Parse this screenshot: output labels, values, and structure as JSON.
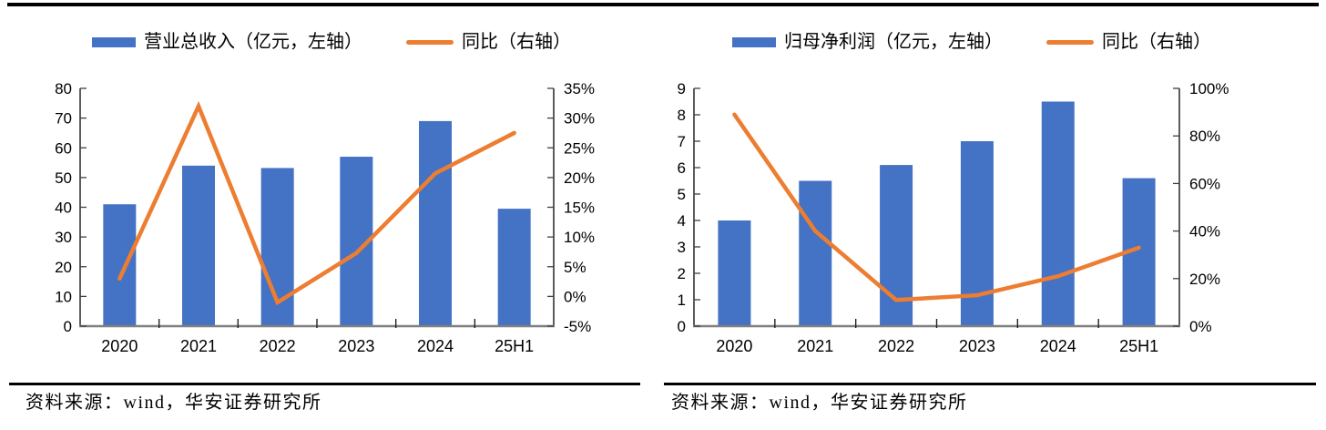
{
  "page": {
    "top_rule_color": "#000000",
    "axis_line_color": "#404040",
    "baseline_color": "#7f7f7f"
  },
  "chart_data": [
    {
      "type": "combo_bar_line",
      "title": "",
      "categories": [
        "2020",
        "2021",
        "2022",
        "2023",
        "2024",
        "25H1"
      ],
      "series": [
        {
          "name": "营业总收入（亿元，左轴）",
          "type": "bar",
          "axis": "left",
          "color": "#4472C4",
          "values": [
            41,
            54,
            53.2,
            57,
            69,
            39.5
          ]
        },
        {
          "name": "同比（右轴）",
          "type": "line",
          "axis": "right",
          "color": "#ED7D31",
          "unit": "%",
          "values": [
            3,
            32,
            -1,
            7.3,
            20.7,
            27.5
          ]
        }
      ],
      "left_axis": {
        "min": 0,
        "max": 80,
        "step": 10,
        "labels": [
          "0",
          "10",
          "20",
          "30",
          "40",
          "50",
          "60",
          "70",
          "80"
        ]
      },
      "right_axis": {
        "min": -5,
        "max": 35,
        "step": 5,
        "labels": [
          "-5%",
          "0%",
          "5%",
          "10%",
          "15%",
          "20%",
          "25%",
          "30%",
          "35%"
        ]
      },
      "grid": false,
      "legend_position": "top",
      "source": "资料来源：wind，华安证券研究所"
    },
    {
      "type": "combo_bar_line",
      "title": "",
      "categories": [
        "2020",
        "2021",
        "2022",
        "2023",
        "2024",
        "25H1"
      ],
      "series": [
        {
          "name": "归母净利润（亿元，左轴）",
          "type": "bar",
          "axis": "left",
          "color": "#4472C4",
          "values": [
            4,
            5.5,
            6.1,
            7,
            8.5,
            5.6
          ]
        },
        {
          "name": "同比（右轴）",
          "type": "line",
          "axis": "right",
          "color": "#ED7D31",
          "unit": "%",
          "values": [
            89,
            40,
            11,
            13,
            21,
            33
          ]
        }
      ],
      "left_axis": {
        "min": 0,
        "max": 9,
        "step": 1,
        "labels": [
          "0",
          "1",
          "2",
          "3",
          "4",
          "5",
          "6",
          "7",
          "8",
          "9"
        ]
      },
      "right_axis": {
        "min": 0,
        "max": 100,
        "step": 20,
        "labels": [
          "0%",
          "20%",
          "40%",
          "60%",
          "80%",
          "100%"
        ]
      },
      "grid": false,
      "legend_position": "top",
      "source": "资料来源：wind，华安证券研究所"
    }
  ]
}
